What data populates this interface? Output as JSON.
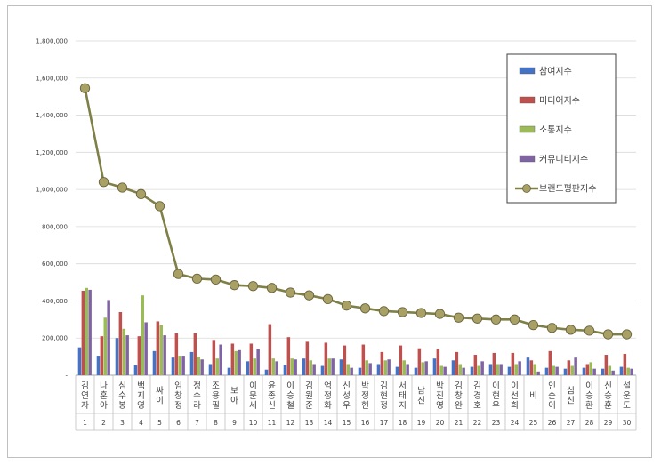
{
  "chart_data": {
    "type": "bar",
    "title": "",
    "xlabel": "",
    "ylabel": "",
    "ylim": [
      0,
      1800000
    ],
    "yticks": [
      0,
      200000,
      400000,
      600000,
      800000,
      1000000,
      1200000,
      1400000,
      1600000,
      1800000
    ],
    "ytick_labels": [
      "-",
      "200,000",
      "400,000",
      "600,000",
      "800,000",
      "1,000,000",
      "1,200,000",
      "1,400,000",
      "1,600,000",
      "1,800,000"
    ],
    "grid": true,
    "legend_position": "right",
    "categories": [
      "김연자",
      "나훈아",
      "심수봉",
      "백지영",
      "싸이",
      "임창정",
      "정수라",
      "조용필",
      "보아",
      "이문세",
      "윤종신",
      "이승철",
      "김원준",
      "엄정화",
      "신성우",
      "박정현",
      "김현정",
      "서태지",
      "남진",
      "박진영",
      "김창완",
      "김경호",
      "이현우",
      "이선희",
      "비",
      "인순이",
      "심신",
      "이승환",
      "신승훈",
      "설운도"
    ],
    "numbers": [
      "1",
      "2",
      "3",
      "4",
      "5",
      "6",
      "7",
      "8",
      "9",
      "10",
      "11",
      "12",
      "13",
      "14",
      "15",
      "16",
      "17",
      "18",
      "19",
      "20",
      "21",
      "22",
      "23",
      "24",
      "25",
      "26",
      "27",
      "28",
      "29",
      "30"
    ],
    "series": [
      {
        "name": "참여지수",
        "type": "bar",
        "color": "#4472c4",
        "values": [
          150000,
          105000,
          200000,
          55000,
          130000,
          95000,
          125000,
          60000,
          40000,
          75000,
          30000,
          55000,
          90000,
          50000,
          85000,
          40000,
          60000,
          45000,
          40000,
          90000,
          80000,
          45000,
          60000,
          45000,
          95000,
          40000,
          35000,
          40000,
          35000,
          45000
        ]
      },
      {
        "name": "미디어지수",
        "type": "bar",
        "color": "#c0504d",
        "values": [
          455000,
          210000,
          340000,
          210000,
          290000,
          225000,
          225000,
          190000,
          170000,
          170000,
          275000,
          205000,
          180000,
          175000,
          160000,
          165000,
          125000,
          160000,
          145000,
          140000,
          125000,
          110000,
          120000,
          120000,
          80000,
          130000,
          80000,
          60000,
          110000,
          115000
        ]
      },
      {
        "name": "소통지수",
        "type": "bar",
        "color": "#9bbb59",
        "values": [
          470000,
          310000,
          250000,
          430000,
          270000,
          105000,
          100000,
          90000,
          130000,
          90000,
          90000,
          90000,
          80000,
          90000,
          60000,
          80000,
          80000,
          80000,
          70000,
          50000,
          60000,
          50000,
          60000,
          60000,
          60000,
          50000,
          50000,
          70000,
          50000,
          40000
        ]
      },
      {
        "name": "커뮤니티지수",
        "type": "bar",
        "color": "#8064a2",
        "values": [
          460000,
          405000,
          215000,
          285000,
          215000,
          105000,
          85000,
          165000,
          135000,
          140000,
          75000,
          85000,
          60000,
          90000,
          40000,
          65000,
          85000,
          60000,
          75000,
          45000,
          40000,
          75000,
          60000,
          75000,
          20000,
          45000,
          95000,
          35000,
          25000,
          35000
        ]
      },
      {
        "name": "브랜드평판지수",
        "type": "line",
        "color": "#7f7f48",
        "values": [
          1545000,
          1040000,
          1010000,
          975000,
          910000,
          545000,
          520000,
          515000,
          485000,
          480000,
          470000,
          445000,
          430000,
          410000,
          375000,
          360000,
          345000,
          340000,
          335000,
          330000,
          310000,
          305000,
          300000,
          300000,
          270000,
          255000,
          245000,
          240000,
          220000,
          220000
        ]
      }
    ]
  }
}
